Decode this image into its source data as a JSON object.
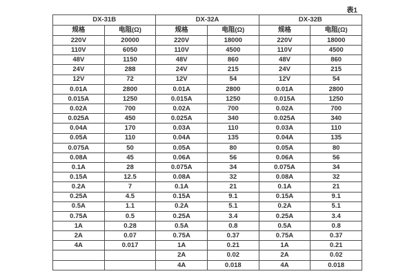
{
  "caption": "表1",
  "colors": {
    "background": "#ffffff",
    "border": "#4d4d4d",
    "text": "#303030"
  },
  "table": {
    "row_count": 24,
    "groups": [
      {
        "title": "DX-31B",
        "headers": [
          "规格",
          "电阻(Ω)"
        ],
        "rows": [
          [
            "220V",
            "20000"
          ],
          [
            "110V",
            "6050"
          ],
          [
            "48V",
            "1150"
          ],
          [
            "24V",
            "288"
          ],
          [
            "12V",
            "72"
          ],
          [
            "0.01A",
            "2800"
          ],
          [
            "0.015A",
            "1250"
          ],
          [
            "0.02A",
            "700"
          ],
          [
            "0.025A",
            "450"
          ],
          [
            "0.04A",
            "170"
          ],
          [
            "0.05A",
            "110"
          ],
          [
            "0.075A",
            "50"
          ],
          [
            "0.08A",
            "45"
          ],
          [
            "0.1A",
            "28"
          ],
          [
            "0.15A",
            "12.5"
          ],
          [
            "0.2A",
            "7"
          ],
          [
            "0.25A",
            "4.5"
          ],
          [
            "0.5A",
            "1.1"
          ],
          [
            "0.75A",
            "0.5"
          ],
          [
            "1A",
            "0.28"
          ],
          [
            "2A",
            "0.07"
          ],
          [
            "4A",
            "0.017"
          ],
          [
            "",
            ""
          ],
          [
            "",
            ""
          ]
        ]
      },
      {
        "title": "DX-32A",
        "headers": [
          "规格",
          "电阻(Ω)"
        ],
        "rows": [
          [
            "220V",
            "18000"
          ],
          [
            "110V",
            "4500"
          ],
          [
            "48V",
            "860"
          ],
          [
            "24V",
            "215"
          ],
          [
            "12V",
            "54"
          ],
          [
            "0.01A",
            "2800"
          ],
          [
            "0.015A",
            "1250"
          ],
          [
            "0.02A",
            "700"
          ],
          [
            "0.025A",
            "340"
          ],
          [
            "0.03A",
            "110"
          ],
          [
            "0.04A",
            "135"
          ],
          [
            "0.05A",
            "80"
          ],
          [
            "0.06A",
            "56"
          ],
          [
            "0.075A",
            "34"
          ],
          [
            "0.08A",
            "32"
          ],
          [
            "0.1A",
            "21"
          ],
          [
            "0.15A",
            "9.1"
          ],
          [
            "0.2A",
            "5.1"
          ],
          [
            "0.25A",
            "3.4"
          ],
          [
            "0.5A",
            "0.8"
          ],
          [
            "0.75A",
            "0.37"
          ],
          [
            "1A",
            "0.21"
          ],
          [
            "2A",
            "0.02"
          ],
          [
            "4A",
            "0.018"
          ]
        ]
      },
      {
        "title": "DX-32B",
        "headers": [
          "规格",
          "电阻(Ω)"
        ],
        "rows": [
          [
            "220V",
            "18000"
          ],
          [
            "110V",
            "4500"
          ],
          [
            "48V",
            "860"
          ],
          [
            "24V",
            "215"
          ],
          [
            "12V",
            "54"
          ],
          [
            "0.01A",
            "2800"
          ],
          [
            "0.015A",
            "1250"
          ],
          [
            "0.02A",
            "700"
          ],
          [
            "0.025A",
            "340"
          ],
          [
            "0.03A",
            "110"
          ],
          [
            "0.04A",
            "135"
          ],
          [
            "0.05A",
            "80"
          ],
          [
            "0.06A",
            "56"
          ],
          [
            "0.075A",
            "34"
          ],
          [
            "0.08A",
            "32"
          ],
          [
            "0.1A",
            "21"
          ],
          [
            "0.15A",
            "9.1"
          ],
          [
            "0.2A",
            "5.1"
          ],
          [
            "0.25A",
            "3.4"
          ],
          [
            "0.5A",
            "0.8"
          ],
          [
            "0.75A",
            "0.37"
          ],
          [
            "1A",
            "0.21"
          ],
          [
            "2A",
            "0.02"
          ],
          [
            "4A",
            "0.018"
          ]
        ]
      }
    ]
  }
}
